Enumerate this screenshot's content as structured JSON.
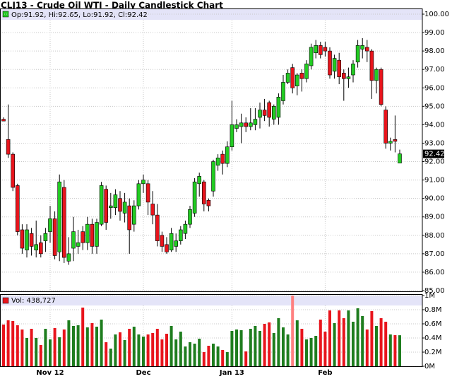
{
  "chart_data": [
    {
      "type": "candlestick",
      "title": "CLJ13 - Crude Oil WTI - Daily Candlestick Chart",
      "legend_text": "Op:91.92, Hi:92.65, Lo:91.92, Cl:92.42",
      "last_price": 92.42,
      "categories": [
        null,
        null,
        null,
        null,
        null,
        null,
        null,
        null,
        null,
        null,
        "Nov 12",
        null,
        null,
        null,
        null,
        null,
        null,
        null,
        null,
        null,
        null,
        null,
        null,
        null,
        null,
        null,
        null,
        null,
        null,
        null,
        "Dec",
        null,
        null,
        null,
        null,
        null,
        null,
        null,
        null,
        null,
        null,
        null,
        null,
        null,
        null,
        null,
        null,
        null,
        null,
        "Jan 13",
        null,
        null,
        null,
        null,
        null,
        null,
        null,
        null,
        null,
        null,
        null,
        null,
        null,
        null,
        null,
        null,
        null,
        null,
        null,
        "Feb",
        null,
        null,
        null,
        null,
        null,
        null,
        null,
        null,
        null,
        null,
        null,
        null,
        null,
        null,
        null,
        null
      ],
      "open": [
        94.3,
        93.2,
        92.4,
        90.7,
        88.3,
        87.2,
        88.1,
        87.2,
        87.6,
        87.7,
        88.2,
        88.9,
        87.1,
        90.6,
        86.6,
        87.3,
        87.4,
        88.2,
        87.6,
        88.6,
        87.4,
        88.6,
        90.5,
        89.5,
        89.5,
        90.0,
        89.2,
        89.6,
        88.6,
        89.6,
        90.8,
        90.8,
        89.7,
        89.1,
        88.0,
        87.5,
        87.2,
        87.4,
        87.7,
        88.1,
        88.6,
        89.2,
        90.8,
        90.9,
        89.9,
        90.4,
        91.8,
        92.4,
        91.9,
        92.8,
        93.8,
        93.9,
        94.1,
        93.9,
        94.0,
        94.4,
        94.8,
        95.2,
        94.3,
        94.4,
        95.3,
        96.3,
        97.1,
        96.1,
        96.8,
        96.5,
        97.2,
        97.9,
        98.3,
        98.2,
        98.0,
        96.9,
        97.5,
        96.8,
        96.5,
        96.7,
        97.4,
        98.1,
        98.2,
        98.0,
        96.4,
        97.0,
        94.8,
        93.0,
        93.2,
        91.92
      ],
      "high": [
        94.4,
        95.1,
        92.5,
        90.8,
        88.6,
        88.6,
        88.4,
        88.8,
        88.0,
        88.4,
        89.6,
        89.3,
        91.3,
        91.0,
        87.9,
        89.0,
        88.3,
        88.5,
        89.0,
        88.9,
        88.9,
        90.9,
        90.7,
        90.3,
        90.5,
        90.4,
        90.3,
        90.0,
        89.9,
        91.0,
        91.3,
        91.0,
        90.4,
        89.7,
        88.2,
        87.9,
        88.4,
        88.1,
        88.5,
        88.8,
        89.6,
        91.1,
        91.4,
        91.0,
        90.0,
        92.1,
        92.4,
        92.6,
        93.1,
        95.3,
        94.3,
        94.6,
        94.4,
        94.9,
        94.9,
        95.2,
        95.4,
        95.3,
        95.1,
        95.7,
        96.7,
        97.0,
        97.3,
        96.8,
        97.0,
        97.5,
        98.4,
        98.6,
        98.5,
        98.5,
        98.2,
        97.8,
        97.9,
        97.0,
        97.1,
        97.5,
        98.6,
        98.7,
        98.6,
        98.1,
        97.1,
        97.1,
        95.0,
        93.3,
        94.5,
        92.65
      ],
      "low": [
        94.2,
        92.2,
        90.4,
        88.0,
        87.0,
        86.8,
        86.9,
        86.8,
        86.8,
        87.1,
        87.6,
        86.7,
        86.6,
        86.5,
        86.4,
        86.6,
        87.0,
        87.2,
        87.2,
        87.0,
        87.0,
        88.5,
        88.3,
        88.9,
        89.1,
        88.8,
        88.7,
        87.0,
        88.2,
        89.4,
        90.3,
        89.1,
        88.6,
        87.4,
        87.1,
        87.0,
        87.1,
        87.1,
        87.5,
        87.8,
        88.4,
        89.0,
        90.1,
        89.3,
        89.3,
        90.1,
        91.5,
        91.3,
        91.7,
        92.6,
        93.6,
        93.0,
        93.6,
        93.7,
        93.7,
        93.8,
        94.2,
        93.9,
        94.0,
        94.0,
        95.1,
        96.2,
        95.7,
        95.6,
        95.8,
        96.3,
        97.0,
        97.6,
        97.6,
        97.7,
        96.5,
        96.5,
        96.2,
        95.3,
        96.0,
        96.3,
        97.1,
        97.6,
        97.4,
        95.4,
        95.7,
        95.0,
        92.7,
        92.6,
        92.5,
        91.92
      ],
      "close": [
        94.2,
        92.4,
        90.6,
        88.2,
        87.3,
        88.3,
        87.4,
        87.5,
        87.0,
        88.1,
        88.9,
        86.9,
        90.9,
        86.8,
        87.0,
        88.2,
        87.6,
        87.6,
        88.6,
        87.4,
        88.7,
        90.7,
        88.7,
        89.6,
        90.2,
        89.3,
        89.8,
        88.3,
        89.6,
        90.8,
        91.0,
        89.8,
        89.1,
        87.7,
        87.4,
        87.1,
        88.1,
        87.7,
        88.3,
        88.6,
        89.4,
        90.9,
        91.2,
        89.7,
        89.6,
        92.0,
        92.2,
        91.9,
        92.8,
        94.0,
        94.0,
        94.1,
        93.9,
        94.1,
        94.3,
        94.8,
        94.5,
        94.4,
        95.0,
        95.5,
        96.3,
        96.8,
        96.0,
        96.7,
        96.5,
        97.3,
        98.2,
        98.3,
        97.8,
        98.0,
        96.7,
        97.6,
        96.6,
        96.5,
        96.6,
        97.3,
        98.3,
        98.3,
        98.0,
        96.4,
        97.0,
        95.1,
        93.0,
        93.1,
        93.1,
        92.42
      ],
      "up_color": "#22cc22",
      "down_color": "#e8141c",
      "ylim": [
        85,
        100
      ],
      "yticks": [
        {
          "value": 85,
          "label": "85.00"
        },
        {
          "value": 86,
          "label": "86.00"
        },
        {
          "value": 87,
          "label": "87.00"
        },
        {
          "value": 88,
          "label": "88.00"
        },
        {
          "value": 89,
          "label": "89.00"
        },
        {
          "value": 90,
          "label": "90.00"
        },
        {
          "value": 91,
          "label": "91.00"
        },
        {
          "value": 92,
          "label": "92.00"
        },
        {
          "value": 93,
          "label": "93.00"
        },
        {
          "value": 94,
          "label": "94.00"
        },
        {
          "value": 95,
          "label": "95.00"
        },
        {
          "value": 96,
          "label": "96.00"
        },
        {
          "value": 97,
          "label": "97.00"
        },
        {
          "value": 98,
          "label": "98.00"
        },
        {
          "value": 99,
          "label": "99.00"
        },
        {
          "value": 100,
          "label": "100.00"
        }
      ],
      "grid": true
    },
    {
      "type": "bar",
      "legend_text": "Vol: 438,727",
      "values": [
        590000,
        650000,
        640000,
        580000,
        520000,
        400000,
        530000,
        400000,
        300000,
        530000,
        380000,
        540000,
        410000,
        520000,
        650000,
        570000,
        580000,
        830000,
        550000,
        610000,
        560000,
        660000,
        340000,
        250000,
        450000,
        480000,
        370000,
        530000,
        560000,
        450000,
        420000,
        450000,
        470000,
        530000,
        380000,
        460000,
        570000,
        380000,
        490000,
        280000,
        340000,
        320000,
        390000,
        200000,
        290000,
        320000,
        280000,
        230000,
        200000,
        500000,
        520000,
        510000,
        210000,
        530000,
        570000,
        500000,
        600000,
        620000,
        470000,
        680000,
        550000,
        450000,
        1050000,
        650000,
        530000,
        380000,
        400000,
        430000,
        660000,
        490000,
        790000,
        610000,
        790000,
        680000,
        790000,
        630000,
        820000,
        710000,
        520000,
        780000,
        570000,
        680000,
        630000,
        450000,
        440000,
        438727
      ],
      "ylim": [
        0,
        1000000
      ],
      "yticks": [
        {
          "value": 0,
          "label": "0M"
        },
        {
          "value": 200000,
          "label": "0.2M"
        },
        {
          "value": 400000,
          "label": "0.4M"
        },
        {
          "value": 600000,
          "label": "0.6M"
        },
        {
          "value": 800000,
          "label": "0.8M"
        },
        {
          "value": 1000000,
          "label": "1M"
        }
      ],
      "grid": true
    }
  ]
}
